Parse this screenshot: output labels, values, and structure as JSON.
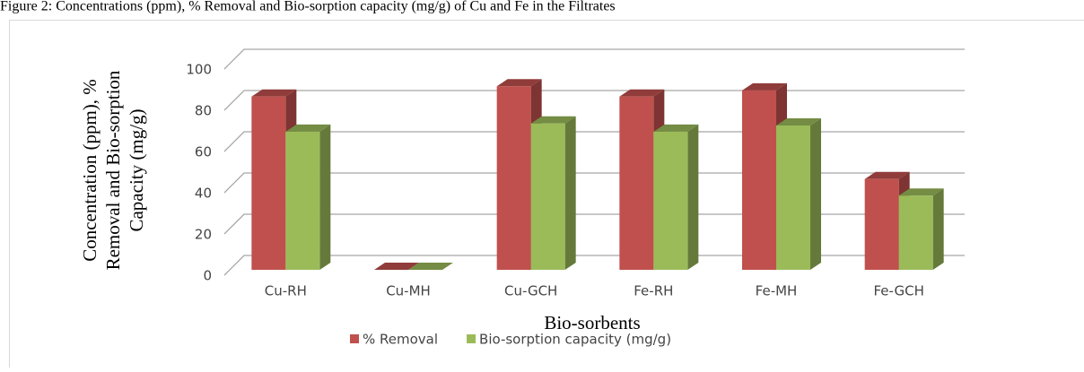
{
  "chart_data": {
    "type": "bar",
    "title": "Figure 2: Concentrations (ppm), % Removal and Bio-sorption capacity (mg/g) of Cu and Fe in the Filtrates",
    "y_label": [
      "Concentration (ppm), %",
      "Removal and Bio-sorption",
      "Capacity  (mg/g)"
    ],
    "x_label": "Bio-sorbents",
    "categories": [
      "Cu-RH",
      "Cu-MH",
      "Cu-GCH",
      "Fe-RH",
      "Fe-MH",
      "Fe-GCH"
    ],
    "series": [
      {
        "name": "% Removal",
        "color": "#c0504d",
        "values": [
          84,
          0,
          89,
          84,
          87,
          44
        ]
      },
      {
        "name": "Bio-sorption capacity (mg/g)",
        "color": "#9bbb59",
        "values": [
          67,
          0,
          71,
          67,
          70,
          36
        ]
      }
    ],
    "ylim": [
      0,
      100
    ],
    "yticks": [
      0,
      20,
      40,
      60,
      80,
      100
    ],
    "grid": true,
    "legend": "bottom"
  }
}
